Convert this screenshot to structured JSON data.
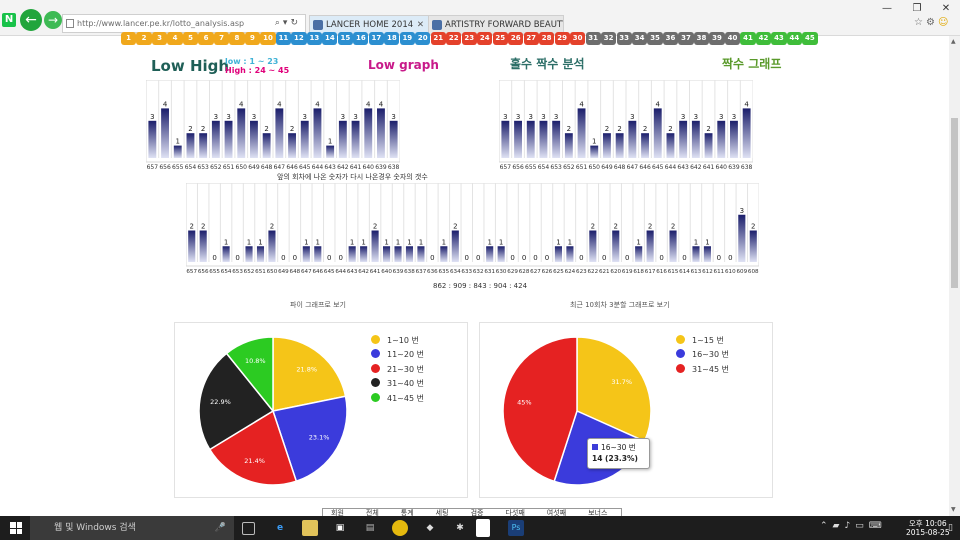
{
  "browser": {
    "address": "http://www.lancer.pe.kr/lotto_analysis.asp",
    "tabs": [
      {
        "label": "LANCER HOME 2014"
      },
      {
        "label": "ARTISTRY FORWARD BEAUTY"
      }
    ],
    "window_buttons": {
      "min": "—",
      "max": "❐",
      "close": "✕"
    }
  },
  "number_strip": [
    "1",
    "2",
    "3",
    "4",
    "5",
    "6",
    "7",
    "8",
    "9",
    "10",
    "11",
    "12",
    "13",
    "14",
    "15",
    "16",
    "17",
    "18",
    "19",
    "20",
    "21",
    "22",
    "23",
    "24",
    "25",
    "26",
    "27",
    "28",
    "29",
    "30",
    "31",
    "32",
    "33",
    "34",
    "35",
    "36",
    "37",
    "38",
    "39",
    "40",
    "41",
    "42",
    "43",
    "44",
    "45"
  ],
  "colors": {
    "yellow": "#f0a81c",
    "blue": "#2c8fd0",
    "red": "#e4412b",
    "gray": "#6d6d6d",
    "green": "#3fbd3a"
  },
  "headings": {
    "low_high": "Low High",
    "low_range": "low : 1 ~ 23",
    "high_range": "High : 24 ~ 45",
    "low_graph": "Low graph",
    "odd_even": "홀수 짝수 분석",
    "even_graph": "짝수 그래프"
  },
  "captions": {
    "repeat": "앞의 회차에 나온 숫자가 다시 나온경우 숫자의 갯수",
    "numbers": "862 : 909 : 843 : 904 : 424",
    "pie1_title": "파이 그래프로 보기",
    "pie2_title": "최근 10회차 3분할 그래프로 보기"
  },
  "chart_data": [
    {
      "type": "bar",
      "title": "Low High",
      "categories": [
        "657",
        "656",
        "655",
        "654",
        "653",
        "652",
        "651",
        "650",
        "649",
        "648",
        "647",
        "646",
        "645",
        "644",
        "643",
        "642",
        "641",
        "640",
        "639",
        "638"
      ],
      "values": [
        3,
        4,
        1,
        2,
        2,
        3,
        3,
        4,
        3,
        2,
        4,
        2,
        3,
        4,
        1,
        3,
        3,
        4,
        4,
        3
      ],
      "ylim": [
        0,
        5
      ]
    },
    {
      "type": "bar",
      "title": "짝수 그래프",
      "categories": [
        "657",
        "656",
        "655",
        "654",
        "653",
        "652",
        "651",
        "650",
        "649",
        "648",
        "647",
        "646",
        "645",
        "644",
        "643",
        "642",
        "641",
        "640",
        "639",
        "638"
      ],
      "values": [
        3,
        3,
        3,
        3,
        3,
        2,
        4,
        1,
        2,
        2,
        3,
        2,
        4,
        2,
        3,
        3,
        2,
        3,
        3,
        4
      ],
      "ylim": [
        0,
        5
      ]
    },
    {
      "type": "bar",
      "title": "앞의 회차에 나온 숫자가 다시 나온경우 숫자의 갯수",
      "categories": [
        "657",
        "656",
        "655",
        "654",
        "653",
        "652",
        "651",
        "650",
        "649",
        "648",
        "647",
        "646",
        "645",
        "644",
        "643",
        "642",
        "641",
        "640",
        "639",
        "638",
        "637",
        "636",
        "635",
        "634",
        "633",
        "632",
        "631",
        "630",
        "629",
        "628",
        "627",
        "626",
        "625",
        "624",
        "623",
        "622",
        "621",
        "620",
        "619",
        "618",
        "617",
        "616",
        "615",
        "614",
        "613",
        "612",
        "611",
        "610",
        "609",
        "608"
      ],
      "values": [
        2,
        2,
        0,
        1,
        0,
        1,
        1,
        2,
        0,
        0,
        1,
        1,
        0,
        0,
        1,
        1,
        2,
        1,
        1,
        1,
        1,
        0,
        1,
        2,
        0,
        0,
        1,
        1,
        0,
        0,
        0,
        0,
        1,
        1,
        0,
        2,
        0,
        2,
        0,
        1,
        2,
        0,
        2,
        0,
        1,
        1,
        0,
        0,
        3,
        2
      ],
      "ylim": [
        0,
        4
      ]
    },
    {
      "type": "pie",
      "title": "파이 그래프로 보기",
      "labels": [
        "1~10 번",
        "11~20 번",
        "21~30 번",
        "31~40 번",
        "41~45 번"
      ],
      "values": [
        21.8,
        23.1,
        21.4,
        22.9,
        10.8
      ],
      "colors": [
        "#f5c518",
        "#3b3bdc",
        "#e52222",
        "#222222",
        "#2ccb22"
      ]
    },
    {
      "type": "pie",
      "title": "최근 10회차 3분할 그래프로 보기",
      "labels": [
        "1~15 번",
        "16~30 번",
        "31~45 번"
      ],
      "values": [
        31.7,
        23.3,
        45
      ],
      "colors": [
        "#f5c518",
        "#3b3bdc",
        "#e52222"
      ],
      "tooltip": {
        "label": "16~30 번",
        "value": "14 (23.3%)"
      }
    }
  ],
  "subnav": [
    "회원",
    "전체",
    "통계",
    "세팅",
    "검증",
    "다섯째",
    "여섯째",
    "보너스"
  ],
  "taskbar": {
    "search_placeholder": "웹 및 Windows 검색",
    "time": "오후 10:06",
    "date": "2015-08-25"
  }
}
